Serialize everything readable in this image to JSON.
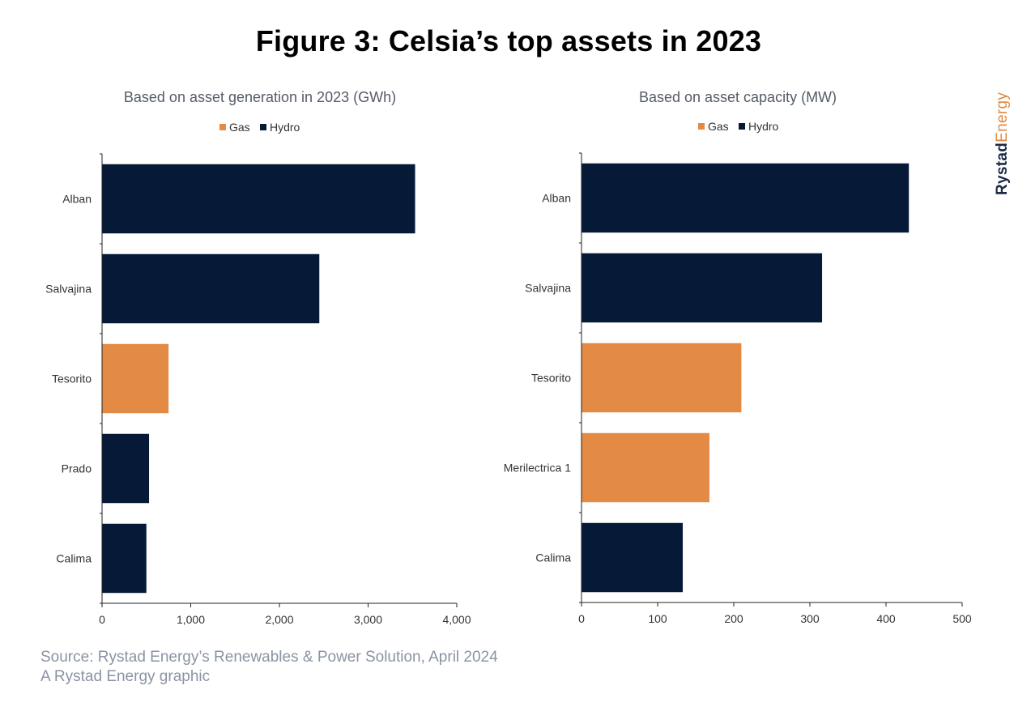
{
  "title": "Figure 3: Celsia’s top assets in 2023",
  "brand": {
    "part1": "Rystad",
    "part2": "Energy"
  },
  "source_line1": "Source: Rystad Energy’s Renewables & Power Solution, April 2024",
  "source_line2": "A Rystad Energy graphic",
  "colors": {
    "Gas": "#e38a45",
    "Hydro": "#061a38"
  },
  "chart_data": [
    {
      "type": "bar",
      "orientation": "horizontal",
      "title": "Based on asset generation in 2023 (GWh)",
      "legend": [
        "Gas",
        "Hydro"
      ],
      "legend_position": "top",
      "categories": [
        "Alban",
        "Salvajina",
        "Tesorito",
        "Prado",
        "Calima"
      ],
      "values": [
        3530,
        2450,
        750,
        530,
        500
      ],
      "series_of_bar": [
        "Hydro",
        "Hydro",
        "Gas",
        "Hydro",
        "Hydro"
      ],
      "xlim": [
        0,
        4000
      ],
      "xticks": [
        0,
        1000,
        2000,
        3000,
        4000
      ],
      "xtick_labels": [
        "0",
        "1,000",
        "2,000",
        "3,000",
        "4,000"
      ],
      "grid": false
    },
    {
      "type": "bar",
      "orientation": "horizontal",
      "title": "Based on asset capacity (MW)",
      "legend": [
        "Gas",
        "Hydro"
      ],
      "legend_position": "top",
      "categories": [
        "Alban",
        "Salvajina",
        "Tesorito",
        "Merilectrica 1",
        "Calima"
      ],
      "values": [
        430,
        316,
        210,
        168,
        133
      ],
      "series_of_bar": [
        "Hydro",
        "Hydro",
        "Gas",
        "Gas",
        "Hydro"
      ],
      "xlim": [
        0,
        500
      ],
      "xticks": [
        0,
        100,
        200,
        300,
        400,
        500
      ],
      "xtick_labels": [
        "0",
        "100",
        "200",
        "300",
        "400",
        "500"
      ],
      "grid": false
    }
  ]
}
